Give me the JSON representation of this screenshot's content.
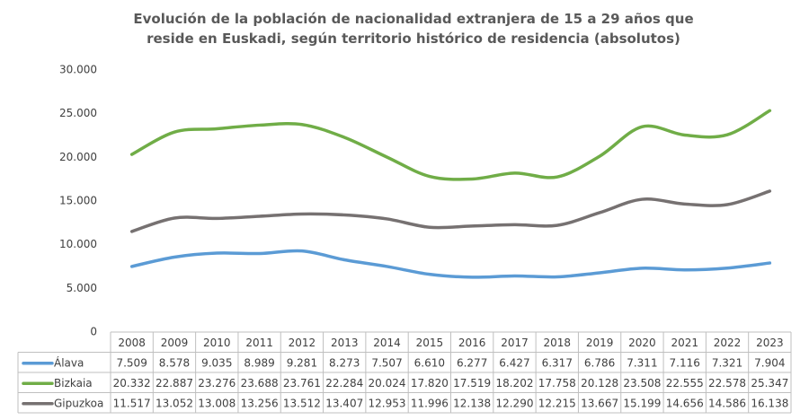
{
  "chart_data": {
    "type": "line",
    "title": "Evolución de la población de nacionalidad extranjera de 15 a 29 años que reside en Euskadi, según territorio histórico de residencia (absolutos)",
    "categories": [
      "2008",
      "2009",
      "2010",
      "2011",
      "2012",
      "2013",
      "2014",
      "2015",
      "2016",
      "2017",
      "2018",
      "2019",
      "2020",
      "2021",
      "2022",
      "2023"
    ],
    "series": [
      {
        "name": "Álava",
        "color": "#5b9bd5",
        "values": [
          7509,
          8578,
          9035,
          8989,
          9281,
          8273,
          7507,
          6610,
          6277,
          6427,
          6317,
          6786,
          7311,
          7116,
          7321,
          7904
        ],
        "value_labels": [
          "7.509",
          "8.578",
          "9.035",
          "8.989",
          "9.281",
          "8.273",
          "7.507",
          "6.610",
          "6.277",
          "6.427",
          "6.317",
          "6.786",
          "7.311",
          "7.116",
          "7.321",
          "7.904"
        ]
      },
      {
        "name": "Bizkaia",
        "color": "#70ad47",
        "values": [
          20332,
          22887,
          23276,
          23688,
          23761,
          22284,
          20024,
          17820,
          17519,
          18202,
          17758,
          20128,
          23508,
          22555,
          22578,
          25347
        ],
        "value_labels": [
          "20.332",
          "22.887",
          "23.276",
          "23.688",
          "23.761",
          "22.284",
          "20.024",
          "17.820",
          "17.519",
          "18.202",
          "17.758",
          "20.128",
          "23.508",
          "22.555",
          "22.578",
          "25.347"
        ]
      },
      {
        "name": "Gipuzkoa",
        "color": "#767171",
        "values": [
          11517,
          13052,
          13008,
          13256,
          13512,
          13407,
          12953,
          11996,
          12138,
          12290,
          12215,
          13667,
          15199,
          14656,
          14586,
          16138
        ],
        "value_labels": [
          "11.517",
          "13.052",
          "13.008",
          "13.256",
          "13.512",
          "13.407",
          "12.953",
          "11.996",
          "12.138",
          "12.290",
          "12.215",
          "13.667",
          "15.199",
          "14.656",
          "14.586",
          "16.138"
        ]
      }
    ],
    "ylim": [
      0,
      30000
    ],
    "yticks": [
      0,
      {
        "value": 5000,
        "label": "5.000"
      },
      {
        "value": 10000,
        "label": "10.000"
      },
      {
        "value": 15000,
        "label": "15.000"
      },
      {
        "value": 20000,
        "label": "20.000"
      },
      {
        "value": 25000,
        "label": "25.000"
      },
      {
        "value": 30000,
        "label": "30.000"
      }
    ],
    "grid": false
  }
}
